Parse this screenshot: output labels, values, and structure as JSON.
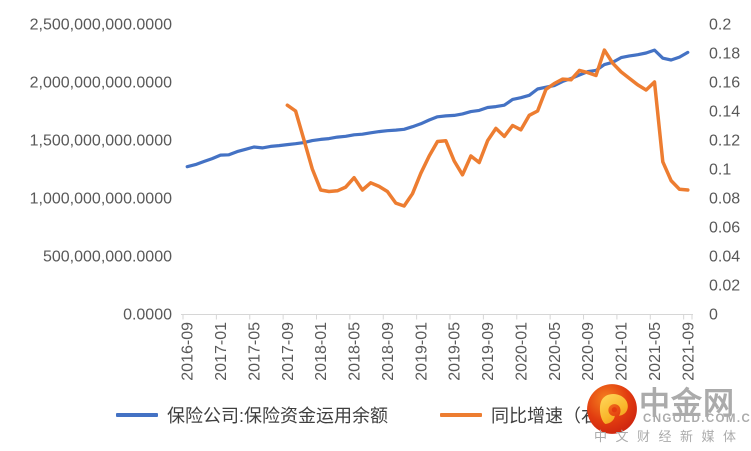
{
  "chart_data": {
    "type": "line",
    "title": "",
    "categories": [
      "2016-09",
      "2016-10",
      "2016-11",
      "2016-12",
      "2017-01",
      "2017-02",
      "2017-03",
      "2017-04",
      "2017-05",
      "2017-06",
      "2017-07",
      "2017-08",
      "2017-09",
      "2017-10",
      "2017-11",
      "2017-12",
      "2018-01",
      "2018-02",
      "2018-03",
      "2018-04",
      "2018-05",
      "2018-06",
      "2018-07",
      "2018-08",
      "2018-09",
      "2018-10",
      "2018-11",
      "2018-12",
      "2019-01",
      "2019-02",
      "2019-03",
      "2019-04",
      "2019-05",
      "2019-06",
      "2019-07",
      "2019-08",
      "2019-09",
      "2019-10",
      "2019-11",
      "2019-12",
      "2020-01",
      "2020-02",
      "2020-03",
      "2020-04",
      "2020-05",
      "2020-06",
      "2020-07",
      "2020-08",
      "2020-09",
      "2020-10",
      "2020-11",
      "2020-12",
      "2021-01",
      "2021-02",
      "2021-03",
      "2021-04",
      "2021-05",
      "2021-06",
      "2021-07",
      "2021-08",
      "2021-09"
    ],
    "x_tick_labels": [
      "2016-09",
      "2017-01",
      "2017-05",
      "2017-09",
      "2018-01",
      "2018-05",
      "2018-09",
      "2019-01",
      "2019-05",
      "2019-09",
      "2020-01",
      "2020-05",
      "2020-09",
      "2021-01",
      "2021-05",
      "2021-09"
    ],
    "series": [
      {
        "name": "保险公司:保险资金运用余额",
        "axis": "left",
        "color": "#4472C4",
        "start_index": 0,
        "values": [
          1270000000,
          1288000000,
          1315000000,
          1340000000,
          1370000000,
          1372000000,
          1400000000,
          1420000000,
          1440000000,
          1432000000,
          1445000000,
          1452000000,
          1460000000,
          1468000000,
          1478000000,
          1495000000,
          1505000000,
          1512000000,
          1525000000,
          1532000000,
          1545000000,
          1550000000,
          1562000000,
          1572000000,
          1580000000,
          1585000000,
          1592000000,
          1615000000,
          1640000000,
          1672000000,
          1700000000,
          1708000000,
          1712000000,
          1725000000,
          1745000000,
          1755000000,
          1780000000,
          1788000000,
          1800000000,
          1850000000,
          1865000000,
          1885000000,
          1940000000,
          1955000000,
          1970000000,
          2005000000,
          2030000000,
          2060000000,
          2090000000,
          2100000000,
          2150000000,
          2170000000,
          2210000000,
          2225000000,
          2235000000,
          2250000000,
          2275000000,
          2205000000,
          2190000000,
          2215000000,
          2255000000
        ]
      },
      {
        "name": "同比增速（右轴）",
        "axis": "right",
        "color": "#ED7D31",
        "start_index": 12,
        "values": [
          0.144,
          0.14,
          0.12,
          0.1,
          0.0855,
          0.0845,
          0.085,
          0.0875,
          0.094,
          0.0855,
          0.0905,
          0.088,
          0.0845,
          0.0765,
          0.0745,
          0.083,
          0.097,
          0.109,
          0.119,
          0.1195,
          0.1055,
          0.096,
          0.109,
          0.1045,
          0.1195,
          0.128,
          0.1225,
          0.13,
          0.127,
          0.137,
          0.14,
          0.155,
          0.159,
          0.162,
          0.1615,
          0.168,
          0.1665,
          0.1645,
          0.182,
          0.173,
          0.167,
          0.1625,
          0.158,
          0.1545,
          0.16,
          0.105,
          0.092,
          0.086,
          0.0855
        ]
      }
    ],
    "left_axis": {
      "min": 0,
      "max": 2500000000,
      "tick_labels": [
        "2,500,000,000.0000",
        "2,000,000,000.0000",
        "1,500,000,000.0000",
        "1,000,000,000.0000",
        "500,000,000.0000",
        "0.0000"
      ]
    },
    "right_axis": {
      "min": 0,
      "max": 0.2,
      "tick_labels": [
        "0.2",
        "0.18",
        "0.16",
        "0.14",
        "0.12",
        "0.1",
        "0.08",
        "0.06",
        "0.04",
        "0.02",
        "0"
      ]
    },
    "grid": "off",
    "legend_position": "bottom"
  },
  "legend": {
    "items": [
      {
        "label": "保险公司:保险资金运用余额",
        "color": "#4472C4"
      },
      {
        "label": "同比增速（右轴）",
        "color": "#ED7D31"
      }
    ]
  },
  "watermark": {
    "brand": "中金网",
    "domain": "CNGOLD.COM.CN",
    "tagline": "中文财经新媒体"
  },
  "colors": {
    "axis_text": "#595959",
    "axis_line": "#d6d6d6",
    "watermark_text": "#ababab"
  }
}
